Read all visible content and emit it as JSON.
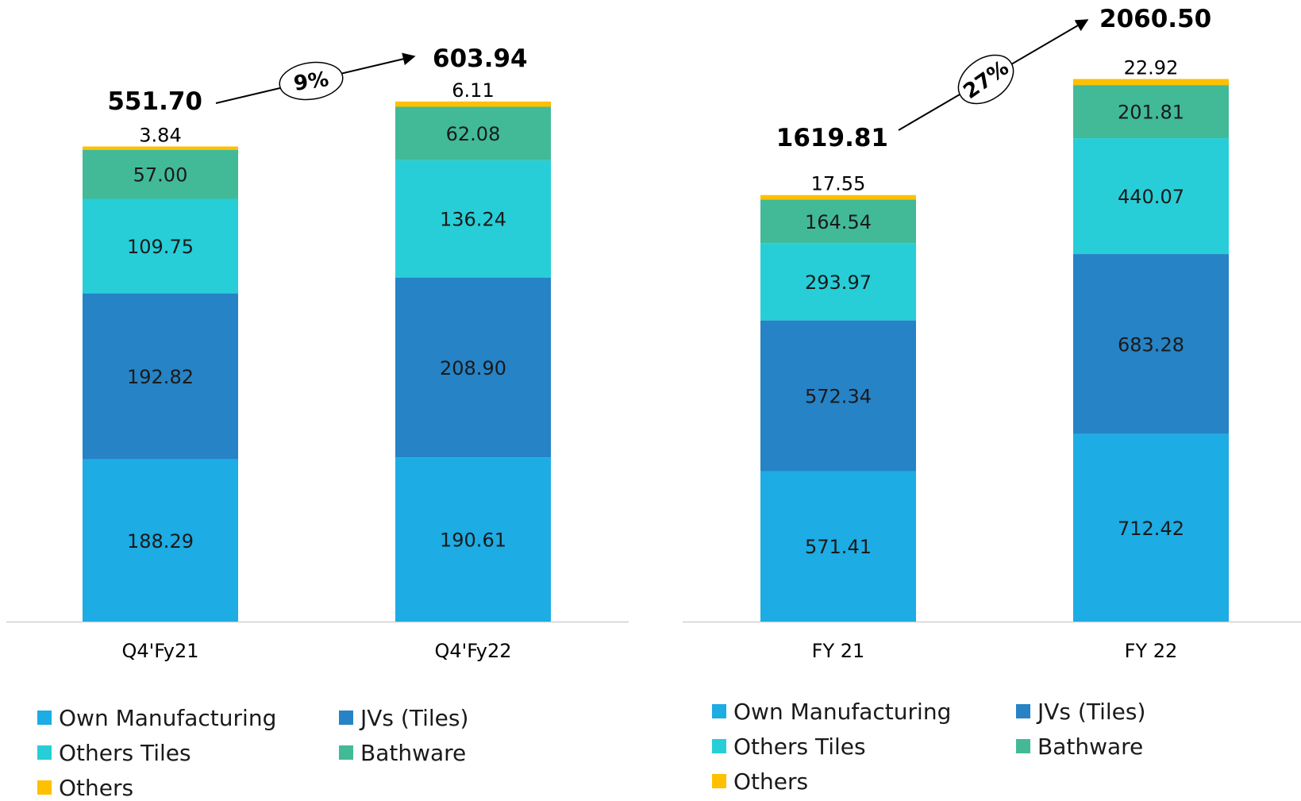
{
  "colors": {
    "Own Manufacturing": "#1DACE3",
    "JVs (Tiles)": "#2683C6",
    "Others Tiles": "#27CED7",
    "Bathware": "#42BA97",
    "Others": "#FFC000"
  },
  "legend": {
    "left": [
      "Own Manufacturing",
      "JVs (Tiles)",
      "Others Tiles",
      "Bathware",
      "Others"
    ],
    "right": [
      "Own Manufacturing",
      "JVs (Tiles)",
      "Others Tiles",
      "Bathware",
      "Others"
    ]
  },
  "chart_data": [
    {
      "type": "bar",
      "stacked": true,
      "categories": [
        "Q4'Fy21",
        "Q4'Fy22"
      ],
      "series": [
        {
          "name": "Own Manufacturing",
          "values": [
            188.29,
            190.61
          ]
        },
        {
          "name": "JVs (Tiles)",
          "values": [
            192.82,
            208.9
          ]
        },
        {
          "name": "Others Tiles",
          "values": [
            109.75,
            136.24
          ]
        },
        {
          "name": "Bathware",
          "values": [
            57.0,
            62.08
          ]
        },
        {
          "name": "Others",
          "values": [
            3.84,
            6.11
          ]
        }
      ],
      "value_labels": [
        [
          "188.29",
          "192.82",
          "109.75",
          "57.00",
          "3.84"
        ],
        [
          "190.61",
          "208.90",
          "136.24",
          "62.08",
          "6.11"
        ]
      ],
      "totals": [
        "551.70",
        "603.94"
      ],
      "growth": "9%",
      "legend_position": "bottom"
    },
    {
      "type": "bar",
      "stacked": true,
      "categories": [
        "FY 21",
        "FY 22"
      ],
      "series": [
        {
          "name": "Own Manufacturing",
          "values": [
            571.41,
            712.42
          ]
        },
        {
          "name": "JVs (Tiles)",
          "values": [
            572.34,
            683.28
          ]
        },
        {
          "name": "Others Tiles",
          "values": [
            293.97,
            440.07
          ]
        },
        {
          "name": "Bathware",
          "values": [
            164.54,
            201.81
          ]
        },
        {
          "name": "Others",
          "values": [
            17.55,
            22.92
          ]
        }
      ],
      "value_labels": [
        [
          "571.41",
          "572.34",
          "293.97",
          "164.54",
          "17.55"
        ],
        [
          "712.42",
          "683.28",
          "440.07",
          "201.81",
          "22.92"
        ]
      ],
      "totals": [
        "1619.81",
        "2060.50"
      ],
      "growth": "27%",
      "legend_position": "bottom"
    }
  ]
}
